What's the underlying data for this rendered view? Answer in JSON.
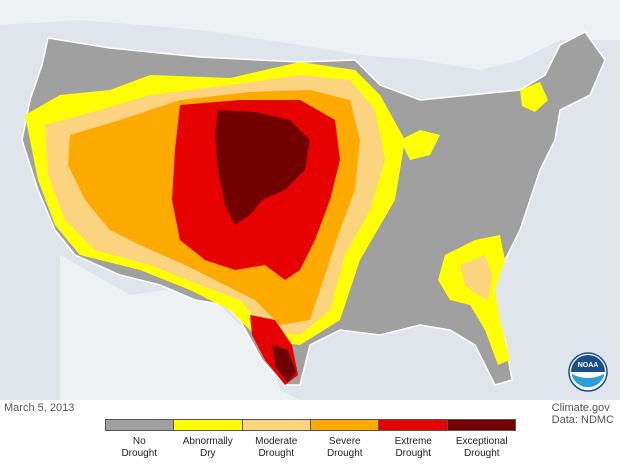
{
  "date": "March 5, 2013",
  "credit": {
    "line1": "Climate.gov",
    "line2": "Data: NDMC"
  },
  "logo": {
    "text": "NOAA"
  },
  "legend": [
    {
      "line1": "No",
      "line2": "Drought",
      "color": "#a0a0a0"
    },
    {
      "line1": "Abnormally",
      "line2": "Dry",
      "color": "#ffff00"
    },
    {
      "line1": "Moderate",
      "line2": "Drought",
      "color": "#fcd37f"
    },
    {
      "line1": "Severe",
      "line2": "Drought",
      "color": "#ffaa00"
    },
    {
      "line1": "Extreme",
      "line2": "Drought",
      "color": "#e60000"
    },
    {
      "line1": "Exceptional",
      "line2": "Drought",
      "color": "#730000"
    }
  ],
  "colors": {
    "background": "#dfe5ea",
    "land": "#a0a0a0",
    "border": "#ffffff"
  }
}
